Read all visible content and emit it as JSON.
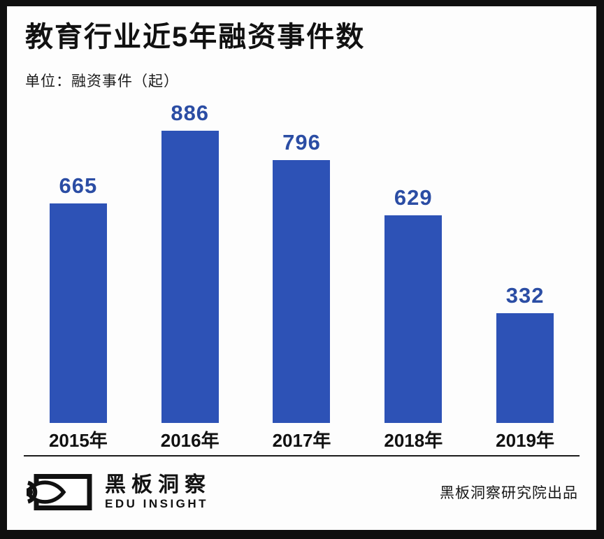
{
  "title": "教育行业近5年融资事件数",
  "subtitle": "单位：融资事件（起）",
  "chart_data": {
    "type": "bar",
    "title": "教育行业近5年融资事件数",
    "categories": [
      "2015年",
      "2016年",
      "2017年",
      "2018年",
      "2019年"
    ],
    "values": [
      665,
      886,
      796,
      629,
      332
    ],
    "xlabel": "",
    "ylabel": "融资事件（起）",
    "ylim": [
      0,
      900
    ],
    "grid": false,
    "legend": "none",
    "value_labels_shown": true,
    "bar_color": "#2d52b6",
    "value_label_color": "#2b4da4",
    "axis_label_color": "#111111"
  },
  "footer": {
    "logo_icon": "eye-in-rectangle",
    "brand_cn": "黑板洞察",
    "brand_en": "EDU INSIGHT",
    "credit": "黑板洞察研究院出品"
  },
  "frame": {
    "border_color": "#0f0f0f",
    "background": "#fdfdfd"
  }
}
